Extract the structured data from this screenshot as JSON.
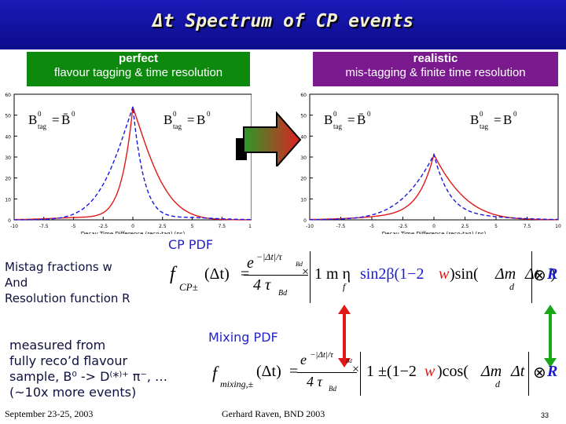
{
  "slide": {
    "title": "Δt Spectrum of CP events",
    "page_number": "33",
    "footer_left": "September 23-25, 2003",
    "footer_center": "Gerhard Raven, BND 2003"
  },
  "left_box": {
    "heading": "perfect",
    "subtitle": "flavour tagging & time resolution"
  },
  "right_box": {
    "heading": "realistic",
    "subtitle": "mis-tagging & finite time resolution"
  },
  "plots": {
    "axis_title": "Decay Time Difference (reco-tag) (ps)",
    "x_ticks": [
      "-10",
      "-7.5",
      "-5",
      "-2.5",
      "0",
      "2.5",
      "5",
      "7.5",
      "10"
    ],
    "y_ticks": [
      "0",
      "10",
      "20",
      "30",
      "40",
      "50",
      "60"
    ],
    "label_left": "B",
    "label_left_sub": "tag",
    "label_left_sup": "0",
    "label_eq": "=",
    "label_left_rhs": "B̄",
    "label_right_rhs": "B",
    "colors": {
      "red": "#e01818",
      "blue": "#1818e0"
    }
  },
  "labels": {
    "cp_pdf": "CP PDF",
    "mixing_pdf": "Mixing PDF",
    "mistag_line1": "Mistag fractions w",
    "mistag_line2": "And",
    "mistag_line3": "Resolution function R",
    "measured_line1": "measured from",
    "measured_line2": "fully reco’d flavour",
    "measured_line3": "sample, B⁰ -> D⁽*⁾⁺ π⁻, …",
    "measured_line4": "(~10x more events)"
  },
  "formula_cp": {
    "f": "f",
    "sub": "CP±",
    "arg": "(Δt)",
    "eq": "=",
    "num": "e",
    "num_sup": "−|Δt|/τ",
    "num_sup_sub": "Bd",
    "den": "4 τ",
    "den_sub": "Bd",
    "times": "×",
    "body": "1 m η",
    "body_sub": "f",
    "sin_term": "sin2β(1−2",
    "w": "w",
    "sin_tail": ")sin(",
    "dm": "Δm",
    "dm_sub": "d",
    "dt": "Δt",
    "close": ")",
    "conv": "⊗",
    "R": "R"
  },
  "formula_mix": {
    "f": "f",
    "sub": "mixing,±",
    "arg": "(Δt)",
    "eq": "=",
    "num": "e",
    "num_sup": "−|Δt|/τ",
    "num_sup_sub": "Bd",
    "den": "4 τ",
    "den_sub": "Bd",
    "times": "×",
    "body": "1 ±(1−2",
    "w": "w",
    "cos_tail": ")cos(",
    "dm": "Δm",
    "dm_sub": "d",
    "dt": "Δt",
    "close": ")",
    "conv": "⊗",
    "R": "R"
  }
}
